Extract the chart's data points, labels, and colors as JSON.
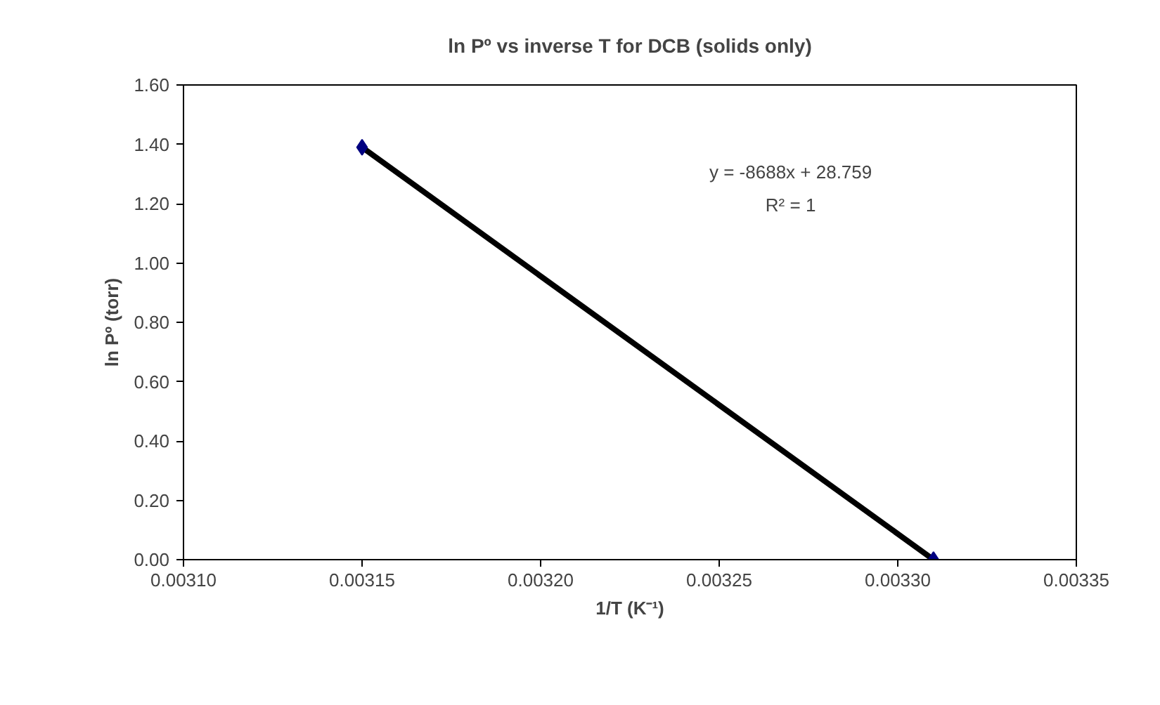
{
  "chart_data": {
    "type": "scatter",
    "title": "ln Pº vs inverse T for DCB (solids only)",
    "xlabel": "1/T (K⁻¹)",
    "ylabel": "ln Pº (torr)",
    "x": [
      0.00315,
      0.00331
    ],
    "series": [
      {
        "type": "line",
        "color": "#000000",
        "x": [
          0.00315,
          0.00331
        ],
        "values": [
          1.39,
          0.0
        ],
        "marker": "none",
        "line_style": "solid"
      },
      {
        "color": "#000080",
        "values": [
          1.39,
          0.0
        ],
        "marker": "diamond"
      }
    ],
    "xlim": [
      0.0031,
      0.00335
    ],
    "xticks": [
      {
        "value": 0.0031,
        "label": "0.00310"
      },
      {
        "value": 0.00315,
        "label": "0.00315"
      },
      {
        "value": 0.0032,
        "label": "0.00320"
      },
      {
        "value": 0.00325,
        "label": "0.00325"
      },
      {
        "value": 0.0033,
        "label": "0.00330"
      },
      {
        "value": 0.00335,
        "label": "0.00335"
      }
    ],
    "ylim": [
      0,
      1.6
    ],
    "yticks": [
      {
        "value": 0,
        "label": "0.00"
      },
      {
        "value": 0.2,
        "label": "0.20"
      },
      {
        "value": 0.4,
        "label": "0.40"
      },
      {
        "value": 0.6,
        "label": "0.60"
      },
      {
        "value": 0.8,
        "label": "0.80"
      },
      {
        "value": 1.0,
        "label": "1.00"
      },
      {
        "value": 1.2,
        "label": "1.20"
      },
      {
        "value": 1.4,
        "label": "1.40"
      },
      {
        "value": 1.6,
        "label": "1.60"
      }
    ],
    "annotations": [
      "y = -8688x + 28.759",
      "R² = 1"
    ],
    "grid": false
  }
}
